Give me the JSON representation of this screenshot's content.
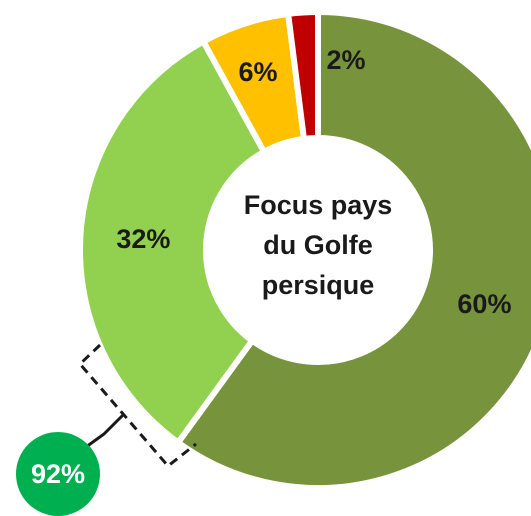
{
  "chart_data": {
    "type": "donut",
    "center_label": [
      "Focus pays",
      "du Golfe",
      "persique"
    ],
    "categories": [
      null,
      null,
      null,
      null
    ],
    "values": [
      60,
      32,
      6,
      2
    ],
    "value_labels": [
      "60%",
      "32%",
      "6%",
      "2%"
    ],
    "colors": [
      "#77933c",
      "#92d050",
      "#ffc000",
      "#c00000"
    ],
    "annotations": [
      {
        "text": "92%",
        "color": "#00b050"
      }
    ]
  }
}
